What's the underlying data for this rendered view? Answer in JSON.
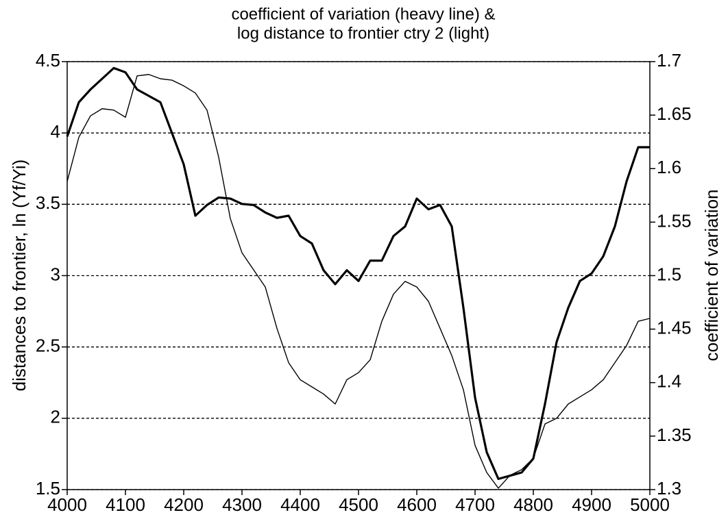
{
  "chart_data": {
    "type": "line",
    "title": [
      "coefficient of variation (heavy line) &",
      "log distance to frontier ctry 2 (light)"
    ],
    "ylabel": "distances to frontier, ln (Yf/Yi)",
    "y2label": "coefficient of variation",
    "x": [
      4000,
      4020,
      4040,
      4060,
      4080,
      4100,
      4120,
      4140,
      4160,
      4180,
      4200,
      4220,
      4240,
      4260,
      4280,
      4300,
      4320,
      4340,
      4360,
      4380,
      4400,
      4420,
      4440,
      4460,
      4480,
      4500,
      4520,
      4540,
      4560,
      4580,
      4600,
      4620,
      4640,
      4660,
      4680,
      4700,
      4720,
      4740,
      4760,
      4780,
      4800,
      4820,
      4840,
      4860,
      4880,
      4900,
      4920,
      4940,
      4960,
      4980,
      5000
    ],
    "series": [
      {
        "color": "#000000",
        "width": 3.2,
        "axis": "y2",
        "values": [
          1.63,
          1.662,
          1.674,
          1.684,
          1.694,
          1.69,
          1.674,
          1.668,
          1.662,
          1.633,
          1.604,
          1.556,
          1.566,
          1.573,
          1.572,
          1.567,
          1.566,
          1.559,
          1.554,
          1.556,
          1.537,
          1.53,
          1.505,
          1.492,
          1.505,
          1.495,
          1.514,
          1.514,
          1.537,
          1.546,
          1.572,
          1.562,
          1.566,
          1.546,
          1.47,
          1.386,
          1.335,
          1.31,
          1.313,
          1.316,
          1.329,
          1.38,
          1.438,
          1.47,
          1.495,
          1.502,
          1.518,
          1.546,
          1.588,
          1.62,
          1.62
        ]
      },
      {
        "color": "#000000",
        "width": 1.4,
        "axis": "y",
        "values": [
          3.66,
          3.97,
          4.12,
          4.17,
          4.16,
          4.11,
          4.4,
          4.41,
          4.38,
          4.37,
          4.33,
          4.28,
          4.16,
          3.83,
          3.4,
          3.16,
          3.04,
          2.92,
          2.63,
          2.39,
          2.27,
          2.22,
          2.17,
          2.1,
          2.27,
          2.32,
          2.41,
          2.68,
          2.87,
          2.96,
          2.92,
          2.82,
          2.63,
          2.44,
          2.2,
          1.81,
          1.62,
          1.51,
          1.6,
          1.64,
          1.72,
          1.96,
          2.0,
          2.1,
          2.15,
          2.2,
          2.27,
          2.39,
          2.51,
          2.68,
          2.7
        ]
      }
    ],
    "xlim": [
      4000,
      5000
    ],
    "xticks": [
      4000,
      4100,
      4200,
      4300,
      4400,
      4500,
      4600,
      4700,
      4800,
      4900,
      5000
    ],
    "ylim": [
      1.5,
      4.5
    ],
    "yticks": [
      1.5,
      2,
      2.5,
      3,
      3.5,
      4,
      4.5
    ],
    "y2lim": [
      1.3,
      1.7
    ],
    "y2ticks": [
      1.3,
      1.35,
      1.4,
      1.45,
      1.5,
      1.55,
      1.6,
      1.65,
      1.7
    ],
    "grid": true
  }
}
